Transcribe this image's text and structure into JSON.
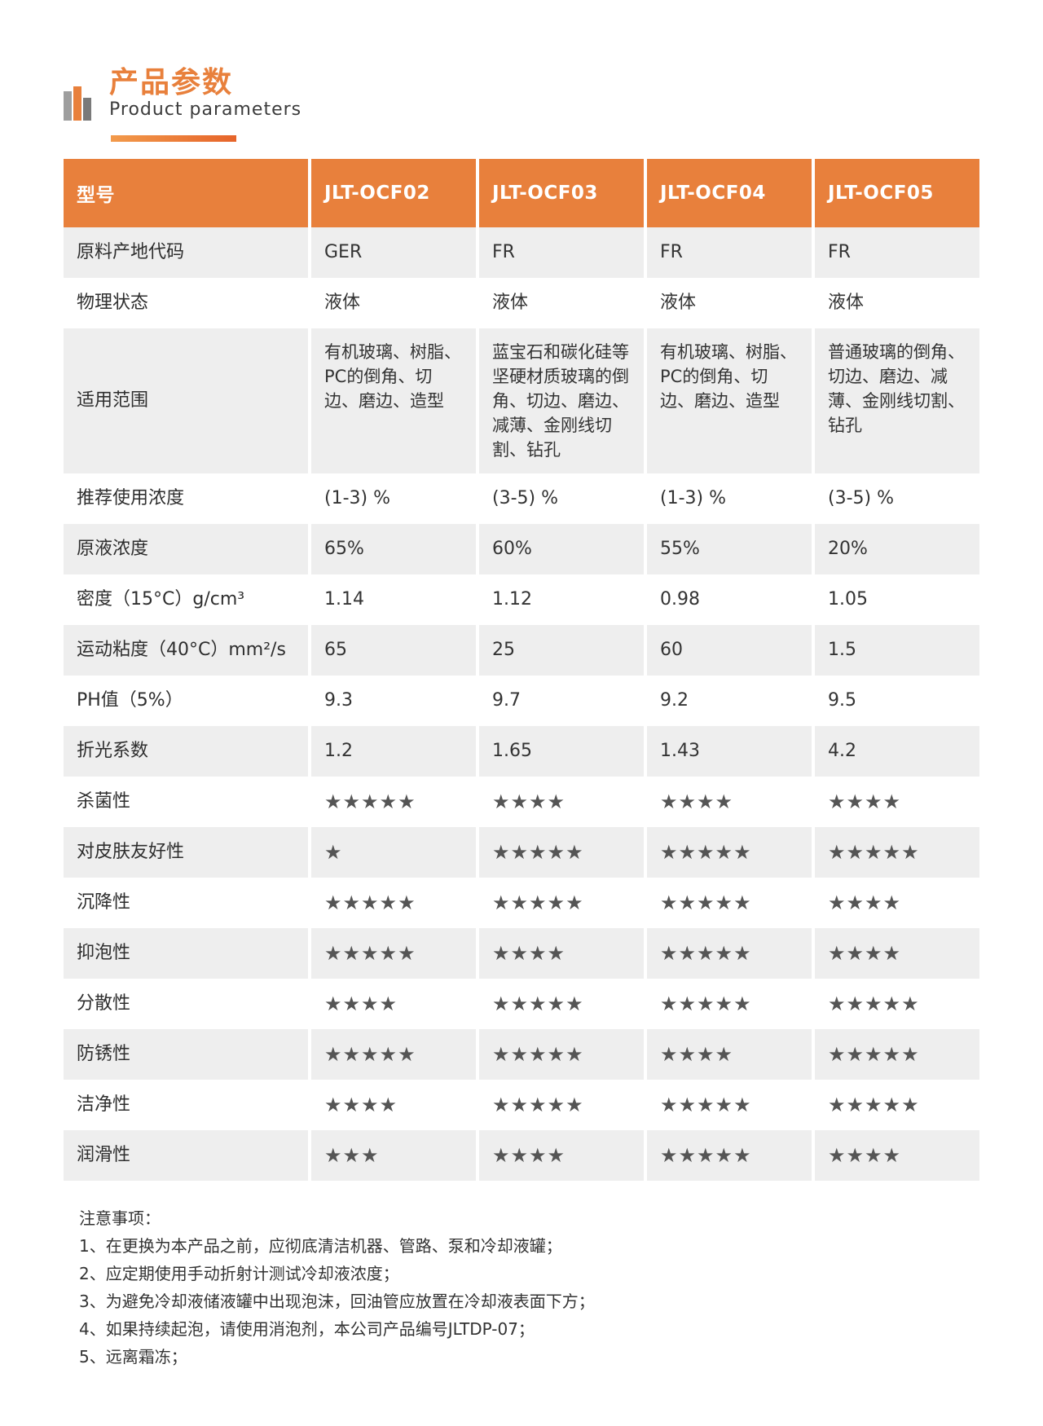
{
  "header": {
    "title_cn": "产品参数",
    "title_en": "Product parameters"
  },
  "table": {
    "columns": [
      "型号",
      "JLT-OCF02",
      "JLT-OCF03",
      "JLT-OCF04",
      "JLT-OCF05"
    ],
    "rows": [
      {
        "label": "原料产地代码",
        "values": [
          "GER",
          "FR",
          "FR",
          "FR"
        ]
      },
      {
        "label": "物理状态",
        "values": [
          "液体",
          "液体",
          "液体",
          "液体"
        ]
      },
      {
        "label": "适用范围",
        "values": [
          "有机玻璃、树脂、PC的倒角、切边、磨边、造型",
          "蓝宝石和碳化硅等坚硬材质玻璃的倒角、切边、磨边、减薄、金刚线切割、钻孔",
          "有机玻璃、树脂、PC的倒角、切边、磨边、造型",
          "普通玻璃的倒角、切边、磨边、减薄、金刚线切割、钻孔"
        ]
      },
      {
        "label": "推荐使用浓度",
        "values": [
          "(1-3) %",
          "(3-5) %",
          "(1-3) %",
          "(3-5) %"
        ]
      },
      {
        "label": "原液浓度",
        "values": [
          "65%",
          "60%",
          "55%",
          "20%"
        ]
      },
      {
        "label": "密度（15°C）g/cm³",
        "values": [
          "1.14",
          "1.12",
          "0.98",
          "1.05"
        ]
      },
      {
        "label": "运动粘度（40°C）mm²/s",
        "values": [
          "65",
          "25",
          "60",
          "1.5"
        ]
      },
      {
        "label": "PH值（5%）",
        "values": [
          "9.3",
          "9.7",
          "9.2",
          "9.5"
        ]
      },
      {
        "label": "折光系数",
        "values": [
          "1.2",
          "1.65",
          "1.43",
          "4.2"
        ]
      },
      {
        "label": "杀菌性",
        "values": [
          "★★★★★",
          "★★★★",
          "★★★★",
          "★★★★"
        ]
      },
      {
        "label": "对皮肤友好性",
        "values": [
          "★",
          "★★★★★",
          "★★★★★",
          "★★★★★"
        ]
      },
      {
        "label": "沉降性",
        "values": [
          "★★★★★",
          "★★★★★",
          "★★★★★",
          "★★★★"
        ]
      },
      {
        "label": "抑泡性",
        "values": [
          "★★★★★",
          "★★★★",
          "★★★★★",
          "★★★★"
        ]
      },
      {
        "label": "分散性",
        "values": [
          "★★★★",
          "★★★★★",
          "★★★★★",
          "★★★★★"
        ]
      },
      {
        "label": "防锈性",
        "values": [
          "★★★★★",
          "★★★★★",
          "★★★★",
          "★★★★★"
        ]
      },
      {
        "label": "洁净性",
        "values": [
          "★★★★",
          "★★★★★",
          "★★★★★",
          "★★★★★"
        ]
      },
      {
        "label": "润滑性",
        "values": [
          "★★★",
          "★★★★",
          "★★★★★",
          "★★★★"
        ]
      }
    ]
  },
  "notes": {
    "title": "注意事项：",
    "items": [
      "1、在更换为本产品之前，应彻底清洁机器、管路、泵和冷却液罐；",
      "2、应定期使用手动折射计测试冷却液浓度；",
      "3、为避免冷却液储液罐中出现泡沫，回油管应放置在冷却液表面下方；",
      "4、如果持续起泡，请使用消泡剂，本公司产品编号JLTDP-07；",
      "5、远离霜冻；"
    ]
  },
  "colors": {
    "accent": "#e8803c",
    "row_shade": "#eeeeee"
  }
}
